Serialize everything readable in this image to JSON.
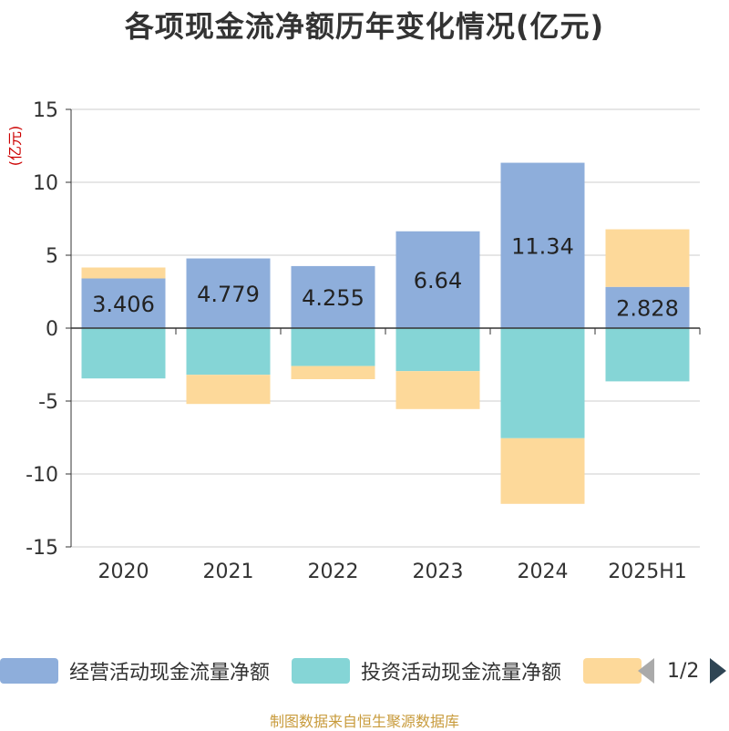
{
  "title": "各项现金流净额历年变化情况(亿元)",
  "source": "制图数据来自恒生聚源数据库",
  "chart_data": {
    "type": "bar",
    "stacked": true,
    "ylabel": "(亿元)",
    "ylim": [
      -15,
      15
    ],
    "yticks": [
      15,
      10,
      5,
      0,
      -5,
      -10,
      -15
    ],
    "categories": [
      "2020",
      "2021",
      "2022",
      "2023",
      "2024",
      "2025H1"
    ],
    "series": [
      {
        "name": "经营活动现金流量净额",
        "color": "#8eaedb",
        "values": [
          3.406,
          4.779,
          4.255,
          6.64,
          11.34,
          2.828
        ],
        "labels": [
          "3.406",
          "4.779",
          "4.255",
          "6.64",
          "11.34",
          "2.828"
        ]
      },
      {
        "name": "投资活动现金流量净额",
        "color": "#85d5d6",
        "values": [
          -3.45,
          -3.2,
          -2.6,
          -2.95,
          -7.55,
          -3.65
        ]
      },
      {
        "name": "",
        "color": "#fdd99a",
        "values": [
          0.75,
          -2.0,
          -0.9,
          -2.6,
          -4.5,
          3.95
        ]
      }
    ],
    "grid": true,
    "legend_position": "bottom"
  },
  "legend": {
    "items": [
      {
        "label": "经营活动现金流量净额",
        "color": "#8eaedb"
      },
      {
        "label": "投资活动现金流量净额",
        "color": "#85d5d6"
      },
      {
        "label": "",
        "color": "#fdd99a"
      }
    ],
    "page": "1/2"
  }
}
